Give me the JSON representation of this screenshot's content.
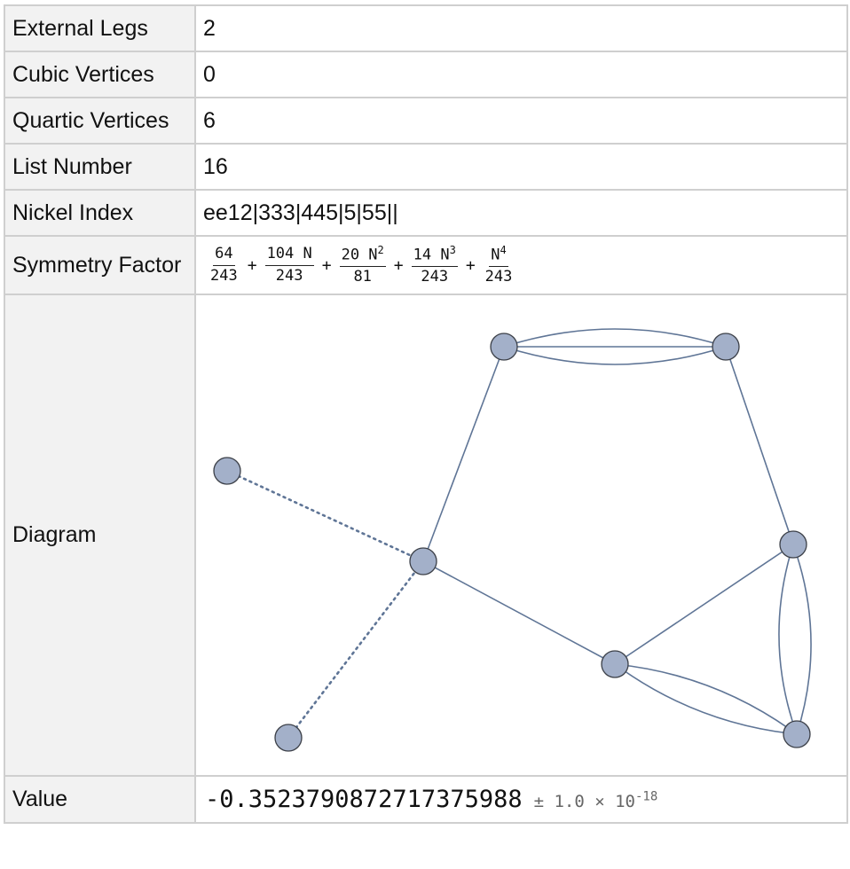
{
  "rows": {
    "external_legs": {
      "label": "External Legs",
      "value": "2"
    },
    "cubic_vertices": {
      "label": "Cubic Vertices",
      "value": "0"
    },
    "quartic_vertices": {
      "label": "Quartic Vertices",
      "value": "6"
    },
    "list_number": {
      "label": "List Number",
      "value": "16"
    },
    "nickel_index": {
      "label": "Nickel Index",
      "value": "ee12|333|445|5|55||"
    },
    "symmetry_factor": {
      "label": "Symmetry Factor",
      "terms": [
        {
          "num": "64",
          "var": "",
          "pow": "",
          "den": "243"
        },
        {
          "num": "104",
          "var": "N",
          "pow": "",
          "den": "243"
        },
        {
          "num": "20",
          "var": "N",
          "pow": "2",
          "den": "81"
        },
        {
          "num": "14",
          "var": "N",
          "pow": "3",
          "den": "243"
        },
        {
          "num": "",
          "var": "N",
          "pow": "4",
          "den": "243"
        }
      ],
      "operator": "+"
    },
    "diagram": {
      "label": "Diagram"
    },
    "value": {
      "label": "Value",
      "number": "-0.3523790872717375988",
      "uncertainty_prefix": "± 1.0 × 10",
      "uncertainty_exponent": "-18"
    }
  },
  "colors": {
    "node_fill": "#a3b0c9",
    "node_stroke": "#3b3f47",
    "edge": "#5f7596",
    "label_bg": "#f2f2f2",
    "border": "#cfcfcf"
  }
}
